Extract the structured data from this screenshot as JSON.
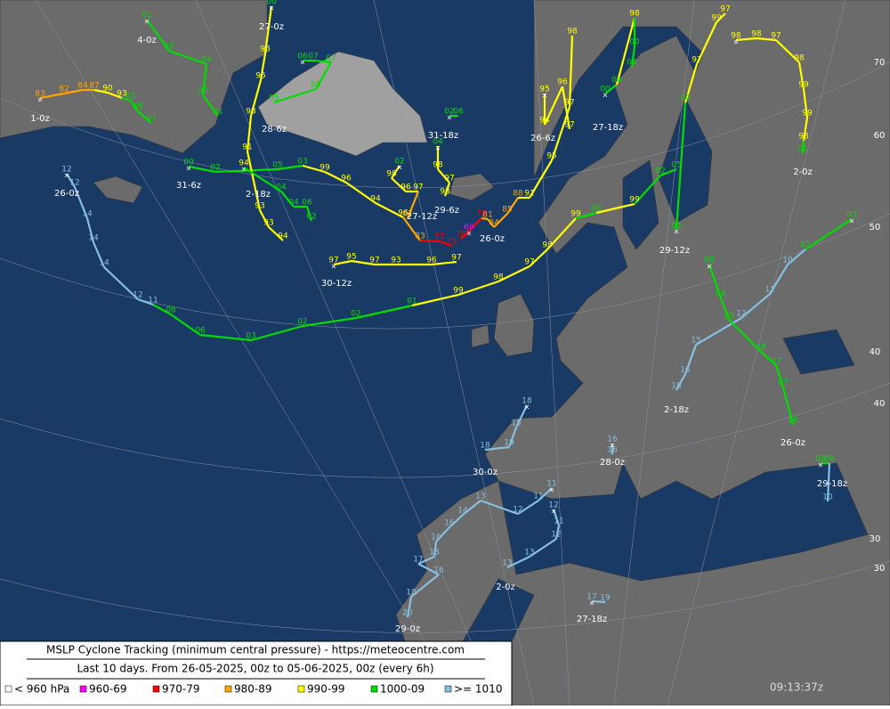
{
  "tracks": [
    {
      "labels": [
        "12",
        "12",
        "14",
        "14",
        "14",
        "12",
        "11",
        "08",
        "06",
        "03",
        "02",
        "02",
        "01",
        "99",
        "98",
        "97",
        "98",
        "99",
        "00",
        "99",
        "02",
        "05"
      ],
      "end": "26-0z"
    },
    {
      "labels": [
        "97",
        "95",
        "97",
        "93",
        "96",
        "97"
      ],
      "end": "30-12z"
    },
    {
      "labels": [
        "00",
        "02",
        "05",
        "03",
        "99",
        "96",
        "94",
        "96",
        "83",
        "77",
        "75"
      ],
      "end": "31-6z"
    },
    {
      "labels": [
        "00",
        "98",
        "95",
        "93",
        "91",
        "93",
        "93",
        "94"
      ],
      "end": "27-0z"
    },
    {
      "labels": [
        "01",
        "02",
        "04",
        "02",
        "01"
      ],
      "end": "4-0z"
    },
    {
      "labels": [
        "83",
        "82",
        "84",
        "87",
        "90",
        "93",
        "01",
        "05",
        "07"
      ],
      "end": "1-0z"
    },
    {
      "labels": [
        "94",
        "04",
        "04",
        "06",
        "02"
      ],
      "end": "2-18z"
    },
    {
      "labels": [
        "06",
        "07",
        "07",
        "05",
        "05"
      ],
      "end": "28-6z"
    },
    {
      "labels": [
        "02",
        "98",
        "96",
        "97",
        "87"
      ],
      "end": "27-12z"
    },
    {
      "labels": [
        "04",
        "98",
        "97",
        "98"
      ],
      "end": "29-6z"
    },
    {
      "labels": [
        "02",
        "06"
      ],
      "end": "31-18z"
    },
    {
      "labels": [
        "69",
        "76",
        "78",
        "81",
        "84",
        "85",
        "88",
        "91",
        "95",
        "97",
        "98"
      ],
      "end": "26-0z"
    },
    {
      "labels": [
        "95",
        "94",
        "96",
        "97"
      ],
      "end": "26-6z"
    },
    {
      "labels": [
        "00",
        "04",
        "98",
        "00",
        "04"
      ],
      "end": "27-18z"
    },
    {
      "labels": [
        "05",
        "00",
        "97",
        "99",
        "97"
      ],
      "end": "29-12z"
    },
    {
      "labels": [
        "98",
        "98",
        "97",
        "98",
        "99",
        "99",
        "98",
        "02"
      ],
      "end": "2-0z"
    },
    {
      "labels": [
        "03",
        "07",
        "10",
        "11",
        "12",
        "15",
        "16",
        "18"
      ],
      "end": "2-18z"
    },
    {
      "labels": [
        "08",
        "08",
        "05",
        "08",
        "07",
        "07",
        "06"
      ],
      "end": "26-0z"
    },
    {
      "labels": [
        "08",
        "08",
        "10"
      ],
      "end": "29-18z"
    },
    {
      "labels": [
        "18",
        "18",
        "19",
        "18"
      ],
      "end": "30-0z"
    },
    {
      "labels": [
        "12",
        "11",
        "12",
        "13",
        "13"
      ],
      "end": "2-0z"
    },
    {
      "labels": [
        "11",
        "11",
        "12",
        "13",
        "14",
        "16",
        "16",
        "18",
        "17",
        "16",
        "18",
        "20"
      ],
      "end": "29-0z"
    },
    {
      "labels": [
        "16",
        "16"
      ],
      "end": "28-0z"
    },
    {
      "labels": [
        "17",
        "19"
      ],
      "end": "27-18z"
    }
  ],
  "lat_labels": [
    "70",
    "60",
    "50",
    "40",
    "40",
    "30",
    "30"
  ],
  "legend": {
    "title": "MSLP Cyclone Tracking (minimum central pressure) - https://meteocentre.com",
    "subtitle": "Last 10 days. From 26-05-2025, 00z to 05-06-2025, 00z (every 6h)",
    "items": [
      {
        "label": "< 960 hPa",
        "color": "#ffffff"
      },
      {
        "label": "960-69",
        "color": "#ff00ff"
      },
      {
        "label": "970-79",
        "color": "#ff0000"
      },
      {
        "label": "980-89",
        "color": "#ffa500"
      },
      {
        "label": "990-99",
        "color": "#ffff00"
      },
      {
        "label": "1000-09",
        "color": "#00dd00"
      },
      {
        "label": ">= 1010",
        "color": "#87bfe0"
      }
    ]
  },
  "timestamp": "09:13:37z"
}
